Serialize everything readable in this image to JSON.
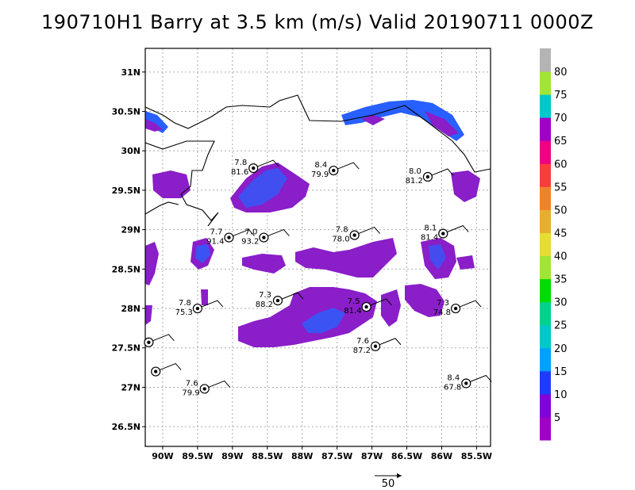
{
  "title": "190710H1 Barry at 3.5 km (m/s) Valid 20190711 0000Z",
  "map": {
    "lat_ticks": [
      "31N",
      "30.5N",
      "30N",
      "29.5N",
      "29N",
      "28.5N",
      "28N",
      "27.5N",
      "27N",
      "26.5N"
    ],
    "lat_values": [
      31,
      30.5,
      30,
      29.5,
      29,
      28.5,
      28,
      27.5,
      27,
      26.5
    ],
    "lon_ticks": [
      "90W",
      "89.5W",
      "89W",
      "88.5W",
      "88W",
      "87.5W",
      "87W",
      "86.5W",
      "86W",
      "85.5W"
    ],
    "lon_values": [
      -90,
      -89.5,
      -89,
      -88.5,
      -88,
      -87.5,
      -87,
      -86.5,
      -86,
      -85.5
    ],
    "lon_range": [
      -90.25,
      -85.3
    ],
    "lat_range": [
      26.25,
      31.3
    ],
    "grid": true
  },
  "stations": [
    {
      "lon": -88.7,
      "lat": 29.78,
      "v1": "7.8",
      "v2": "81.6"
    },
    {
      "lon": -87.55,
      "lat": 29.75,
      "v1": "8.4",
      "v2": "79.9"
    },
    {
      "lon": -86.2,
      "lat": 29.67,
      "v1": "8.0",
      "v2": "81.2"
    },
    {
      "lon": -89.05,
      "lat": 28.9,
      "v1": "7.7",
      "v2": "91.4"
    },
    {
      "lon": -88.55,
      "lat": 28.9,
      "v1": "7.0",
      "v2": "93.2"
    },
    {
      "lon": -87.25,
      "lat": 28.93,
      "v1": "7.8",
      "v2": "78.0"
    },
    {
      "lon": -85.98,
      "lat": 28.95,
      "v1": "8.1",
      "v2": "81.4"
    },
    {
      "lon": -89.5,
      "lat": 28.0,
      "v1": "7.8",
      "v2": "75.3"
    },
    {
      "lon": -88.35,
      "lat": 28.1,
      "v1": "7.3",
      "v2": "88.2"
    },
    {
      "lon": -87.08,
      "lat": 28.02,
      "v1": "7.5",
      "v2": "81.4"
    },
    {
      "lon": -85.8,
      "lat": 28.0,
      "v1": "7.3",
      "v2": "74.8"
    },
    {
      "lon": -86.95,
      "lat": 27.52,
      "v1": "7.6",
      "v2": "87.2"
    },
    {
      "lon": -89.4,
      "lat": 26.98,
      "v1": "7.6",
      "v2": "79.9"
    },
    {
      "lon": -85.65,
      "lat": 27.05,
      "v1": "8.4",
      "v2": "67.8"
    },
    {
      "lon": -90.2,
      "lat": 27.57,
      "v1": "",
      "v2": ""
    },
    {
      "lon": -90.1,
      "lat": 27.2,
      "v1": "",
      "v2": ""
    }
  ],
  "colorbar": {
    "labels": [
      "5",
      "10",
      "15",
      "20",
      "25",
      "30",
      "35",
      "40",
      "45",
      "50",
      "55",
      "60",
      "65",
      "70",
      "75",
      "80"
    ],
    "colors": [
      "#a000c8",
      "#8200dc",
      "#1e3cff",
      "#00a0ff",
      "#00c8c8",
      "#00d28c",
      "#00dc00",
      "#a0e632",
      "#e6dc32",
      "#e6af2d",
      "#f08228",
      "#fa3c3c",
      "#f00082",
      "#a000c8",
      "#00c8c8",
      "#a0e632",
      "#b4b4b4"
    ]
  },
  "vector_ref": {
    "label": "50"
  },
  "colors": {
    "wind_dark": "#8a1ec8",
    "wind_blue": "#2860ff",
    "coast": "#000000",
    "grid": "#aaaaaa"
  }
}
